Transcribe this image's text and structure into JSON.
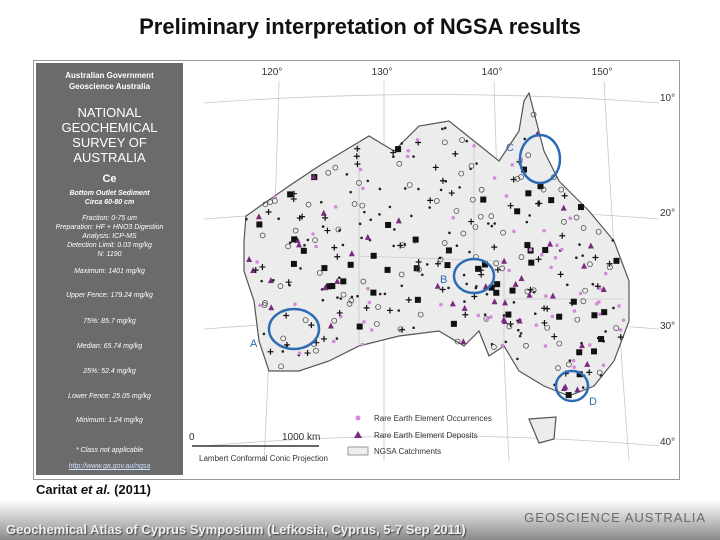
{
  "header": {
    "title": "Preliminary interpretation of NGSA results"
  },
  "legend_panel": {
    "government": "Australian Government",
    "agency": "Geoscience Australia",
    "survey_title": [
      "NATIONAL",
      "GEOCHEMICAL",
      "SURVEY OF",
      "AUSTRALIA"
    ],
    "element": "Ce",
    "medium": "Bottom Outlet Sediment",
    "depth": "Circa 60-80 cm",
    "method": [
      "Fraction: 0-75 um",
      "Preparation: HF + HNO3 Digestion",
      "Analysis: ICP-MS",
      "Detection Limit: 0.03 mg/kg",
      "N: 1190"
    ],
    "stats": [
      "Maximum: 1401 mg/kg",
      "Upper Fence: 179.24 mg/kg",
      "75%: 85.7 mg/kg",
      "Median: 65.74 mg/kg",
      "25%: 52.4 mg/kg",
      "Lower Fence: 25.05 mg/kg",
      "Minimum: 1.24 mg/kg"
    ],
    "note": "* Class not applicable",
    "url": "http://www.ga.gov.au/ngsa"
  },
  "map": {
    "longitudes": [
      "120°",
      "130°",
      "140°",
      "150°"
    ],
    "latitudes": [
      "10°",
      "20°",
      "30°",
      "40°"
    ],
    "regions": [
      "A",
      "B",
      "C",
      "D"
    ],
    "scale_start": "0",
    "scale_end": "1000 km",
    "projection": "Lambert Conformal Conic Projection",
    "legend": [
      "Rare Earth Element Occurrences",
      "Rare Earth Element Deposits",
      "NGSA Catchments"
    ]
  },
  "citation": {
    "author": "Caritat",
    "etal": "et al.",
    "year": "(2011)"
  },
  "footer": {
    "event": "Geochemical Atlas of Cyprus Symposium (Lefkosia, Cyprus, 5-7 Sep 2011)",
    "organisation": "GEOSCIENCE AUSTRALIA"
  }
}
